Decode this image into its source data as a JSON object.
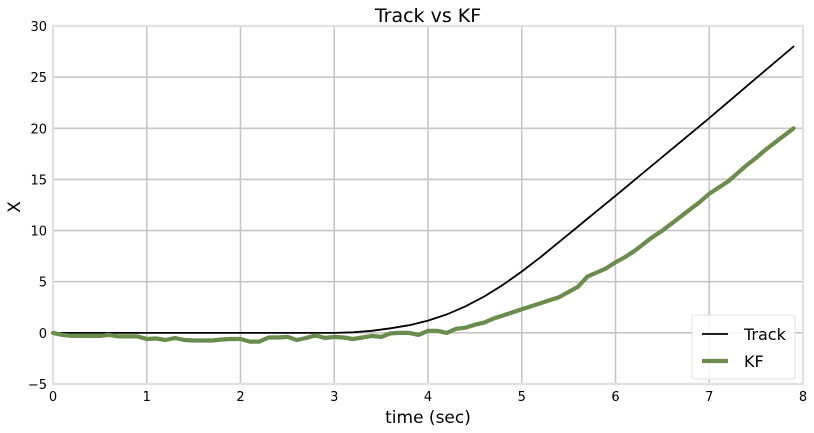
{
  "chart_data": {
    "type": "line",
    "title": "Track vs KF",
    "xlabel": "time (sec)",
    "ylabel": "X",
    "xlim": [
      0,
      8
    ],
    "ylim": [
      -5,
      30
    ],
    "xticks": [
      0,
      1,
      2,
      3,
      4,
      5,
      6,
      7,
      8
    ],
    "yticks": [
      -5,
      0,
      5,
      10,
      15,
      20,
      25,
      30
    ],
    "grid": true,
    "legend_position": "bottom-right",
    "background": "#ffffff",
    "grid_color": "#c6c6c6",
    "series": [
      {
        "name": "Track",
        "color": "#000000",
        "x": [
          0,
          0.5,
          1,
          1.5,
          2,
          2.5,
          3,
          3.2,
          3.4,
          3.6,
          3.8,
          4.0,
          4.2,
          4.4,
          4.6,
          4.8,
          5.0,
          5.2,
          5.4,
          5.6,
          5.8,
          6.0,
          6.5,
          7.0,
          7.5,
          7.9
        ],
        "y": [
          0,
          0,
          0,
          0,
          0,
          0,
          0,
          0.05,
          0.2,
          0.45,
          0.75,
          1.2,
          1.8,
          2.6,
          3.55,
          4.7,
          6.0,
          7.4,
          8.9,
          10.4,
          11.9,
          13.4,
          17.2,
          21.0,
          24.9,
          28.0
        ]
      },
      {
        "name": "KF",
        "color": "#6a8c4c",
        "x": [
          0,
          0.1,
          0.2,
          0.3,
          0.4,
          0.5,
          0.6,
          0.7,
          0.8,
          0.9,
          1.0,
          1.1,
          1.2,
          1.3,
          1.4,
          1.5,
          1.6,
          1.7,
          1.8,
          1.9,
          2.0,
          2.1,
          2.2,
          2.3,
          2.4,
          2.5,
          2.6,
          2.7,
          2.8,
          2.9,
          3.0,
          3.1,
          3.2,
          3.3,
          3.4,
          3.5,
          3.6,
          3.7,
          3.8,
          3.9,
          4.0,
          4.1,
          4.2,
          4.3,
          4.4,
          4.5,
          4.6,
          4.7,
          4.8,
          4.9,
          5.0,
          5.1,
          5.2,
          5.3,
          5.4,
          5.5,
          5.6,
          5.7,
          5.8,
          5.9,
          6.0,
          6.1,
          6.2,
          6.3,
          6.4,
          6.5,
          6.6,
          6.7,
          6.8,
          6.9,
          7.0,
          7.1,
          7.2,
          7.3,
          7.4,
          7.5,
          7.6,
          7.7,
          7.8,
          7.9
        ],
        "y": [
          0,
          -0.2,
          -0.3,
          -0.3,
          -0.3,
          -0.3,
          -0.2,
          -0.35,
          -0.35,
          -0.35,
          -0.6,
          -0.55,
          -0.7,
          -0.5,
          -0.7,
          -0.75,
          -0.75,
          -0.75,
          -0.65,
          -0.6,
          -0.6,
          -0.85,
          -0.85,
          -0.45,
          -0.45,
          -0.4,
          -0.7,
          -0.5,
          -0.25,
          -0.5,
          -0.4,
          -0.45,
          -0.6,
          -0.45,
          -0.3,
          -0.4,
          -0.05,
          0.0,
          0.0,
          -0.2,
          0.2,
          0.2,
          0.0,
          0.4,
          0.5,
          0.8,
          1.0,
          1.4,
          1.7,
          2.0,
          2.3,
          2.6,
          2.9,
          3.2,
          3.5,
          4.0,
          4.5,
          5.5,
          5.9,
          6.3,
          6.9,
          7.4,
          8.0,
          8.7,
          9.4,
          10.0,
          10.7,
          11.4,
          12.1,
          12.8,
          13.6,
          14.2,
          14.8,
          15.6,
          16.4,
          17.1,
          17.9,
          18.6,
          19.3,
          20.0
        ]
      }
    ]
  }
}
